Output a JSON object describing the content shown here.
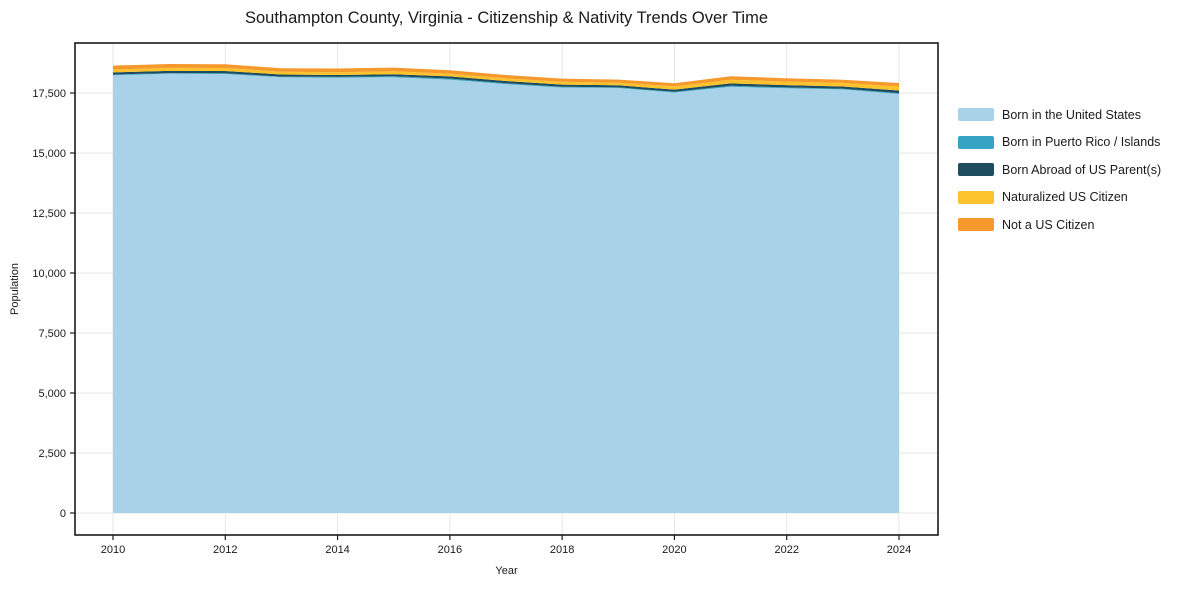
{
  "chart_data": {
    "type": "area",
    "stacked": true,
    "title": "Southampton County, Virginia - Citizenship & Nativity Trends Over Time",
    "xlabel": "Year",
    "ylabel": "Population",
    "x": [
      2010,
      2011,
      2012,
      2013,
      2014,
      2015,
      2016,
      2017,
      2018,
      2019,
      2020,
      2021,
      2022,
      2023,
      2024
    ],
    "x_ticks": [
      2010,
      2012,
      2014,
      2016,
      2018,
      2020,
      2022,
      2024
    ],
    "y_ticks": [
      0,
      2500,
      5000,
      7500,
      10000,
      12500,
      15000,
      17500
    ],
    "ylim": [
      0,
      19580
    ],
    "grid": true,
    "legend_position": "right",
    "series": [
      {
        "name": "Born in the United States",
        "color": "#a7d2e7",
        "values": [
          18240,
          18300,
          18290,
          18160,
          18140,
          18160,
          18060,
          17870,
          17730,
          17710,
          17520,
          17760,
          17700,
          17650,
          17460
        ]
      },
      {
        "name": "Born in Puerto Rico / Islands",
        "color": "#36a3c3",
        "values": [
          30,
          30,
          30,
          25,
          30,
          35,
          40,
          35,
          30,
          25,
          30,
          40,
          35,
          30,
          35
        ]
      },
      {
        "name": "Born Abroad of US Parent(s)",
        "color": "#1f4d60",
        "values": [
          90,
          90,
          95,
          85,
          80,
          90,
          90,
          95,
          90,
          85,
          90,
          100,
          95,
          90,
          110
        ]
      },
      {
        "name": "Naturalized US Citizen",
        "color": "#fcc32d",
        "values": [
          120,
          125,
          125,
          115,
          115,
          120,
          115,
          110,
          115,
          110,
          135,
          155,
          145,
          150,
          160
        ]
      },
      {
        "name": "Not a US Citizen",
        "color": "#f6992d",
        "values": [
          160,
          165,
          160,
          150,
          155,
          155,
          145,
          140,
          135,
          130,
          135,
          145,
          140,
          135,
          150
        ]
      }
    ],
    "style": {
      "grid_color": "#e6e6e6",
      "frame_color": "#1a1a1a",
      "text_color": "#1a1a1a",
      "background": "#ffffff"
    }
  }
}
